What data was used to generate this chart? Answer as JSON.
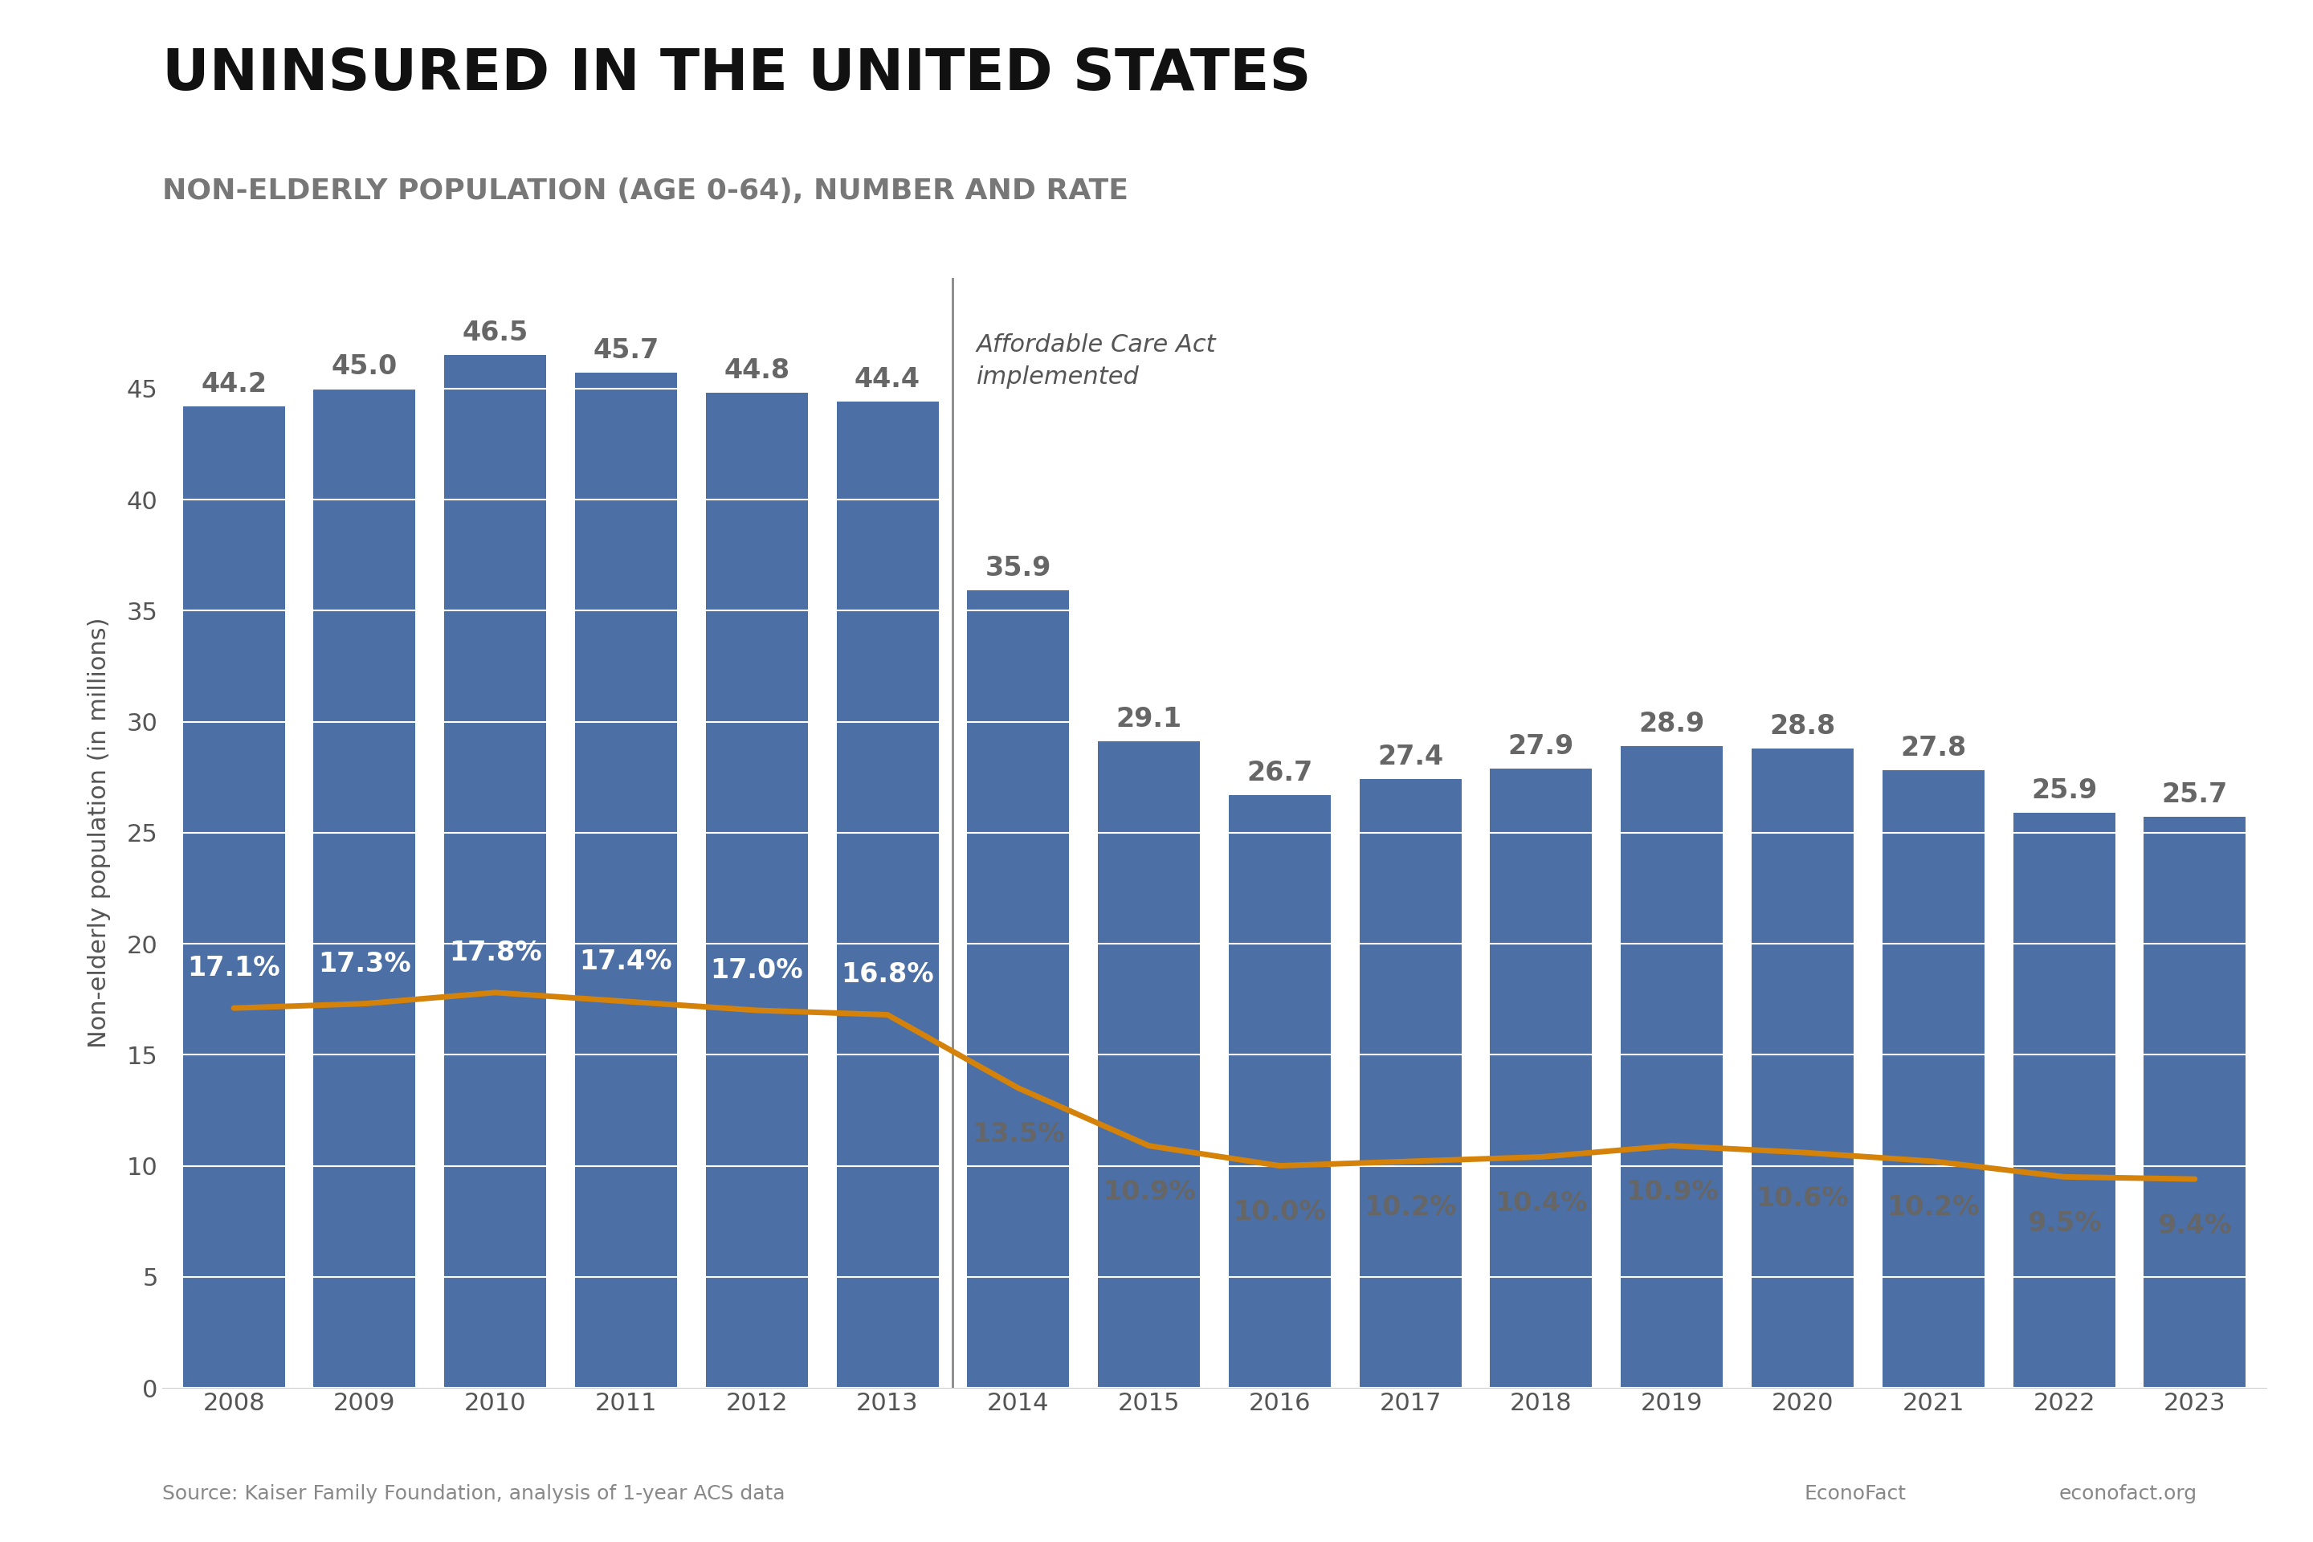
{
  "years": [
    2008,
    2009,
    2010,
    2011,
    2012,
    2013,
    2014,
    2015,
    2016,
    2017,
    2018,
    2019,
    2020,
    2021,
    2022,
    2023
  ],
  "bar_values": [
    44.2,
    45.0,
    46.5,
    45.7,
    44.8,
    44.4,
    35.9,
    29.1,
    26.7,
    27.4,
    27.9,
    28.9,
    28.8,
    27.8,
    25.9,
    25.7
  ],
  "rate_values": [
    17.1,
    17.3,
    17.8,
    17.4,
    17.0,
    16.8,
    13.5,
    10.9,
    10.0,
    10.2,
    10.4,
    10.9,
    10.6,
    10.2,
    9.5,
    9.4
  ],
  "bar_color": "#4C6FA5",
  "line_color": "#D4820A",
  "title": "UNINSURED IN THE UNITED STATES",
  "subtitle": "NON-ELDERLY POPULATION (AGE 0-64), NUMBER AND RATE",
  "ylabel": "Non-elderly population (in millions)",
  "ylim": [
    0,
    50
  ],
  "yticks": [
    0,
    5,
    10,
    15,
    20,
    25,
    30,
    35,
    40,
    45
  ],
  "aca_label_line1": "Affordable Care Act",
  "aca_label_line2": "implemented",
  "source_text": "Source: Kaiser Family Foundation, analysis of 1-year ACS data",
  "right_text1": "EconoFact",
  "right_text2": "econofact.org",
  "title_fontsize": 52,
  "subtitle_fontsize": 26,
  "label_fontsize": 22,
  "tick_fontsize": 22,
  "bar_label_fontsize": 24,
  "rate_label_fontsize": 24,
  "background_color": "#FFFFFF",
  "grid_color": "#CCCCCC",
  "title_color": "#111111",
  "subtitle_color": "#777777",
  "ylabel_color": "#555555",
  "tick_color": "#555555",
  "source_color": "#888888",
  "aca_label_color": "#555555",
  "white_label_color": "#FFFFFF",
  "gray_label_color": "#666666"
}
